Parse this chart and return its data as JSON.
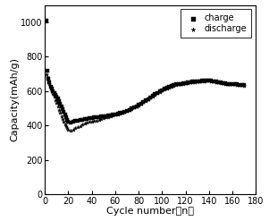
{
  "title": "",
  "xlabel": "Cycle number（n）",
  "ylabel": "Capacity(mAh/g)",
  "xlim": [
    0,
    180
  ],
  "ylim": [
    0,
    1100
  ],
  "xticks": [
    0,
    20,
    40,
    60,
    80,
    100,
    120,
    140,
    160,
    180
  ],
  "yticks": [
    0,
    200,
    400,
    600,
    800,
    1000
  ],
  "charge_cycles": [
    1,
    2,
    3,
    4,
    5,
    6,
    7,
    8,
    9,
    10,
    11,
    12,
    13,
    14,
    15,
    16,
    17,
    18,
    19,
    20,
    22,
    24,
    26,
    28,
    30,
    32,
    34,
    36,
    38,
    40,
    42,
    44,
    46,
    48,
    50,
    52,
    54,
    56,
    58,
    60,
    62,
    64,
    66,
    68,
    70,
    72,
    74,
    76,
    78,
    80,
    82,
    84,
    86,
    88,
    90,
    92,
    94,
    96,
    98,
    100,
    102,
    104,
    106,
    108,
    110,
    112,
    114,
    116,
    118,
    120,
    122,
    124,
    126,
    128,
    130,
    132,
    134,
    136,
    138,
    140,
    142,
    144,
    146,
    148,
    150,
    152,
    154,
    156,
    158,
    160,
    162,
    164,
    166,
    168,
    170
  ],
  "charge_capacity": [
    1010,
    720,
    670,
    650,
    625,
    615,
    600,
    590,
    580,
    570,
    555,
    540,
    525,
    510,
    495,
    478,
    462,
    448,
    435,
    422,
    415,
    420,
    425,
    428,
    432,
    435,
    438,
    440,
    442,
    445,
    446,
    448,
    450,
    452,
    454,
    456,
    458,
    460,
    462,
    465,
    468,
    472,
    476,
    481,
    486,
    492,
    498,
    505,
    512,
    520,
    528,
    536,
    545,
    554,
    563,
    572,
    581,
    589,
    597,
    605,
    612,
    619,
    625,
    630,
    635,
    638,
    641,
    643,
    645,
    648,
    650,
    652,
    654,
    655,
    657,
    658,
    660,
    660,
    662,
    663,
    660,
    658,
    655,
    652,
    650,
    648,
    645,
    643,
    642,
    640,
    640,
    638,
    636,
    635,
    633
  ],
  "discharge_cycles": [
    1,
    2,
    3,
    4,
    5,
    6,
    7,
    8,
    9,
    10,
    11,
    12,
    13,
    14,
    15,
    16,
    17,
    18,
    19,
    20,
    22,
    24,
    26,
    28,
    30,
    32,
    34,
    36,
    38,
    40,
    42,
    44,
    46,
    48,
    50,
    52,
    54,
    56,
    58,
    60,
    62,
    64,
    66,
    68,
    70,
    72,
    74,
    76,
    78,
    80,
    82,
    84,
    86,
    88,
    90,
    92,
    94,
    96,
    98,
    100,
    102,
    104,
    106,
    108,
    110,
    112,
    114,
    116,
    118,
    120,
    122,
    124,
    126,
    128,
    130,
    132,
    134,
    136,
    138,
    140,
    142,
    144,
    146,
    148,
    150,
    152,
    154,
    156,
    158,
    160,
    162,
    164,
    166,
    168,
    170
  ],
  "discharge_capacity": [
    700,
    680,
    660,
    640,
    620,
    600,
    582,
    566,
    548,
    532,
    512,
    490,
    472,
    455,
    438,
    422,
    408,
    396,
    385,
    376,
    370,
    378,
    385,
    392,
    398,
    405,
    411,
    416,
    420,
    424,
    427,
    430,
    434,
    438,
    442,
    446,
    450,
    454,
    458,
    462,
    466,
    470,
    474,
    479,
    485,
    491,
    497,
    503,
    510,
    518,
    526,
    534,
    543,
    552,
    561,
    570,
    579,
    587,
    595,
    603,
    610,
    617,
    622,
    627,
    632,
    636,
    639,
    641,
    643,
    646,
    648,
    650,
    652,
    653,
    655,
    656,
    658,
    658,
    660,
    661,
    658,
    656,
    653,
    650,
    648,
    646,
    643,
    641,
    640,
    638,
    638,
    636,
    634,
    633,
    631
  ],
  "charge_color": "#000000",
  "discharge_color": "#000000",
  "charge_marker": "s",
  "discharge_marker": "*",
  "charge_ms": 9,
  "discharge_ms": 9,
  "legend_fontsize": 7,
  "axis_fontsize": 8,
  "tick_fontsize": 7
}
